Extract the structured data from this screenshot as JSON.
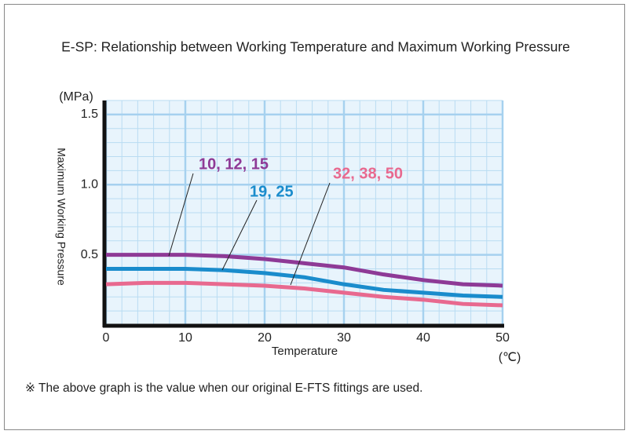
{
  "chart_data": {
    "type": "line",
    "title": "E-SP: Relationship between Working Temperature and Maximum Working Pressure",
    "y_label": "Maximum Working Pressure",
    "y_unit": "(MPa)",
    "x_label": "Temperature",
    "x_unit": "(℃)",
    "note": "※ The above graph is the value when our original E-FTS fittings are used.",
    "x": [
      0,
      5,
      10,
      15,
      20,
      25,
      30,
      35,
      40,
      45,
      50
    ],
    "series": [
      {
        "name": "10, 12, 15",
        "color": "#8e3a96",
        "values": [
          0.5,
          0.5,
          0.5,
          0.49,
          0.47,
          0.44,
          0.41,
          0.36,
          0.32,
          0.29,
          0.28
        ]
      },
      {
        "name": "19, 25",
        "color": "#1a8ccc",
        "values": [
          0.4,
          0.4,
          0.4,
          0.39,
          0.37,
          0.34,
          0.29,
          0.25,
          0.23,
          0.21,
          0.2
        ]
      },
      {
        "name": "32, 38, 50",
        "color": "#e8698f",
        "values": [
          0.29,
          0.3,
          0.3,
          0.29,
          0.28,
          0.26,
          0.23,
          0.2,
          0.18,
          0.15,
          0.14
        ]
      }
    ],
    "xlim": [
      0,
      50
    ],
    "xticks": [
      0,
      10,
      20,
      30,
      40,
      50
    ],
    "ylim": [
      0,
      1.6
    ],
    "yticks": [
      0.5,
      {
        "value": 1,
        "label": "1.0"
      },
      1.5
    ],
    "grid": true
  }
}
